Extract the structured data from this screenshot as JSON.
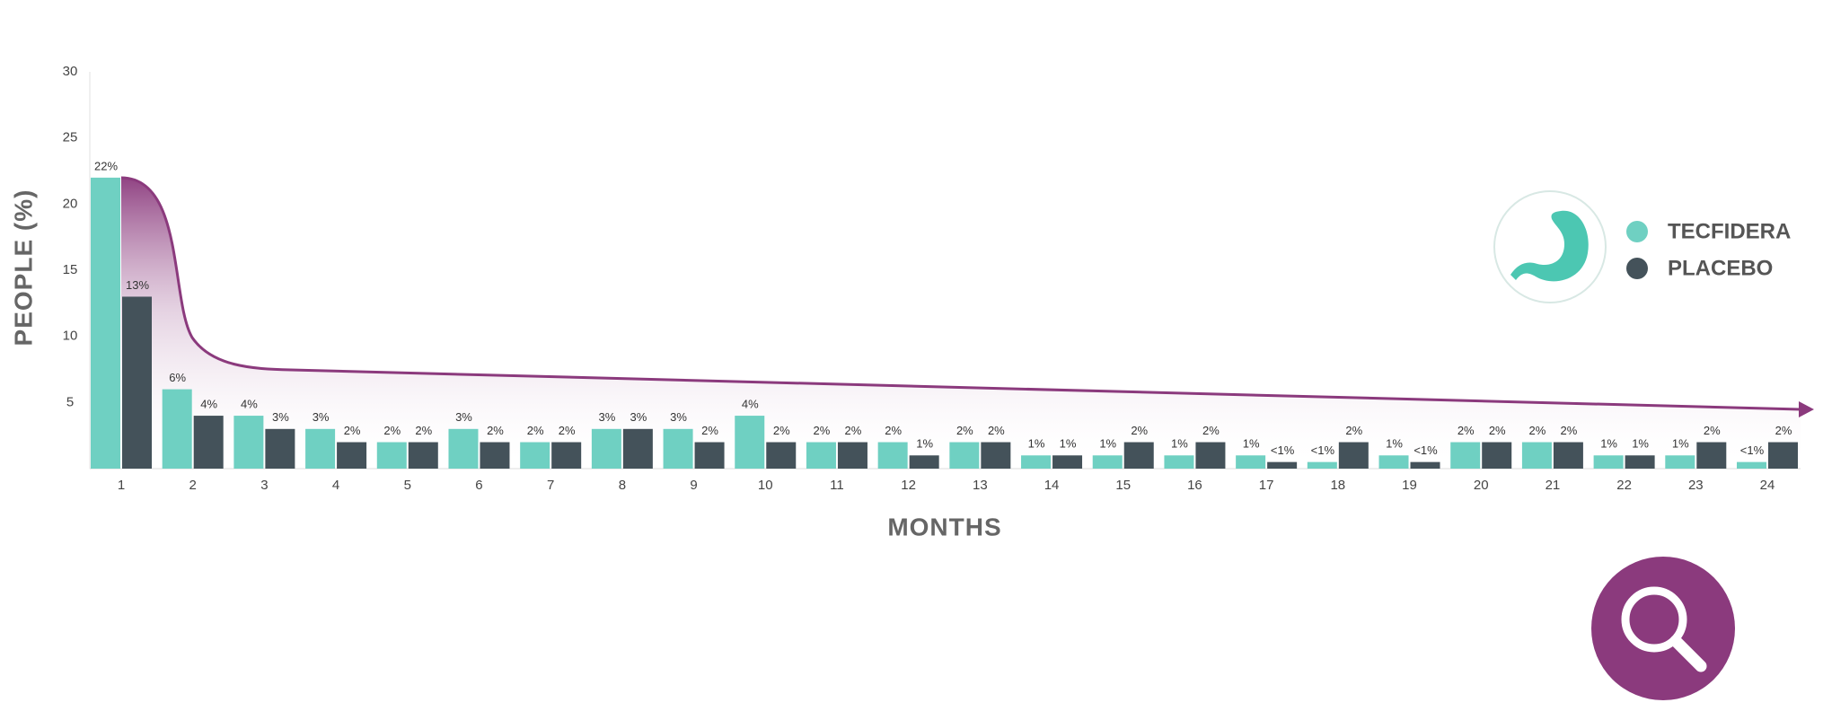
{
  "chart_data": {
    "type": "bar",
    "x_label": "MONTHS",
    "y_label": "PEOPLE (%)",
    "categories": [
      "1",
      "2",
      "3",
      "4",
      "5",
      "6",
      "7",
      "8",
      "9",
      "10",
      "11",
      "12",
      "13",
      "14",
      "15",
      "16",
      "17",
      "18",
      "19",
      "20",
      "21",
      "22",
      "23",
      "24"
    ],
    "series": [
      {
        "name": "TECFIDERA",
        "color": "#6fd0c2",
        "values": [
          22,
          6,
          4,
          3,
          2,
          3,
          2,
          3,
          3,
          4,
          2,
          2,
          2,
          1,
          1,
          1,
          1,
          0.5,
          1,
          2,
          2,
          1,
          1,
          0.5
        ],
        "value_labels": [
          "22%",
          "6%",
          "4%",
          "3%",
          "2%",
          "3%",
          "2%",
          "3%",
          "3%",
          "4%",
          "2%",
          "2%",
          "2%",
          "1%",
          "1%",
          "1%",
          "1%",
          "<1%",
          "1%",
          "2%",
          "2%",
          "1%",
          "1%",
          "<1%"
        ]
      },
      {
        "name": "PLACEBO",
        "color": "#44525a",
        "values": [
          13,
          4,
          3,
          2,
          2,
          2,
          2,
          3,
          2,
          2,
          2,
          1,
          2,
          1,
          2,
          2,
          0.5,
          2,
          0.5,
          2,
          2,
          1,
          2,
          2
        ],
        "value_labels": [
          "13%",
          "4%",
          "3%",
          "2%",
          "2%",
          "2%",
          "2%",
          "3%",
          "2%",
          "2%",
          "2%",
          "1%",
          "2%",
          "1%",
          "2%",
          "2%",
          "<1%",
          "2%",
          "<1%",
          "2%",
          "2%",
          "1%",
          "2%",
          "2%"
        ]
      }
    ],
    "ylim": [
      0,
      30
    ],
    "yticks": [
      5,
      10,
      15,
      20,
      25,
      30
    ],
    "grid": false
  }
}
